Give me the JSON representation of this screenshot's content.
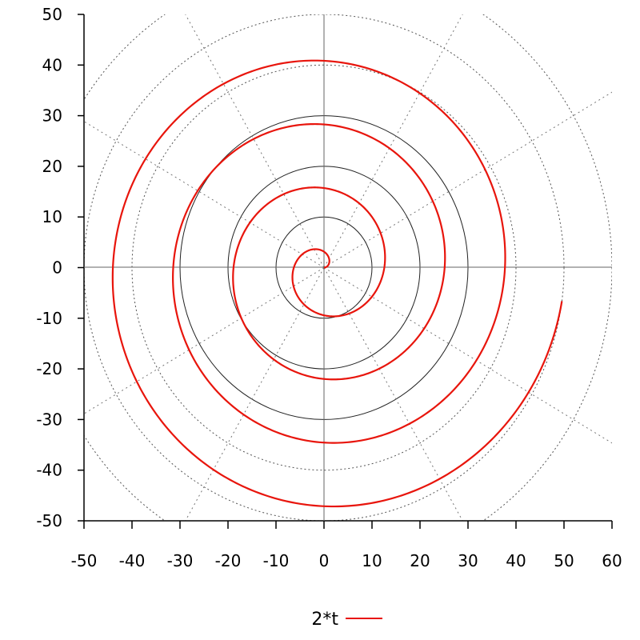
{
  "chart_data": {
    "type": "line",
    "projection": "polar",
    "title": "",
    "xlabel": "",
    "ylabel": "",
    "xlim": [
      -50,
      60
    ],
    "ylim": [
      -50,
      50
    ],
    "x_ticks": [
      "-50",
      "-40",
      "-30",
      "-20",
      "-10",
      "0",
      "10",
      "20",
      "30",
      "40",
      "50",
      "60"
    ],
    "y_ticks": [
      "50",
      "40",
      "30",
      "20",
      "10",
      "0",
      "-10",
      "-20",
      "-30",
      "-40",
      "-50"
    ],
    "grid": true,
    "polar_grid": {
      "radii": [
        10,
        20,
        30,
        40,
        50,
        60
      ],
      "spoke_step_deg": 30
    },
    "legend": {
      "position": "bottom-center"
    },
    "series": [
      {
        "name": "2*t",
        "color": "#e8150c",
        "function": "r = 2*t",
        "t_range": [
          0,
          25
        ],
        "points": [
          {
            "theta_deg": 0,
            "r": 0
          },
          {
            "theta_deg": 90,
            "r": 3.14
          },
          {
            "theta_deg": 180,
            "r": 6.28
          },
          {
            "theta_deg": 270,
            "r": 9.42
          },
          {
            "theta_deg": 360,
            "r": 12.57
          },
          {
            "theta_deg": 450,
            "r": 15.71
          },
          {
            "theta_deg": 540,
            "r": 18.85
          },
          {
            "theta_deg": 630,
            "r": 21.99
          },
          {
            "theta_deg": 720,
            "r": 25.13
          },
          {
            "theta_deg": 810,
            "r": 28.27
          },
          {
            "theta_deg": 900,
            "r": 31.42
          },
          {
            "theta_deg": 990,
            "r": 34.56
          },
          {
            "theta_deg": 1080,
            "r": 37.7
          },
          {
            "theta_deg": 1170,
            "r": 40.84
          },
          {
            "theta_deg": 1260,
            "r": 43.98
          },
          {
            "theta_deg": 1350,
            "r": 47.12
          },
          {
            "theta_deg": 1432,
            "r": 50
          }
        ]
      }
    ]
  }
}
